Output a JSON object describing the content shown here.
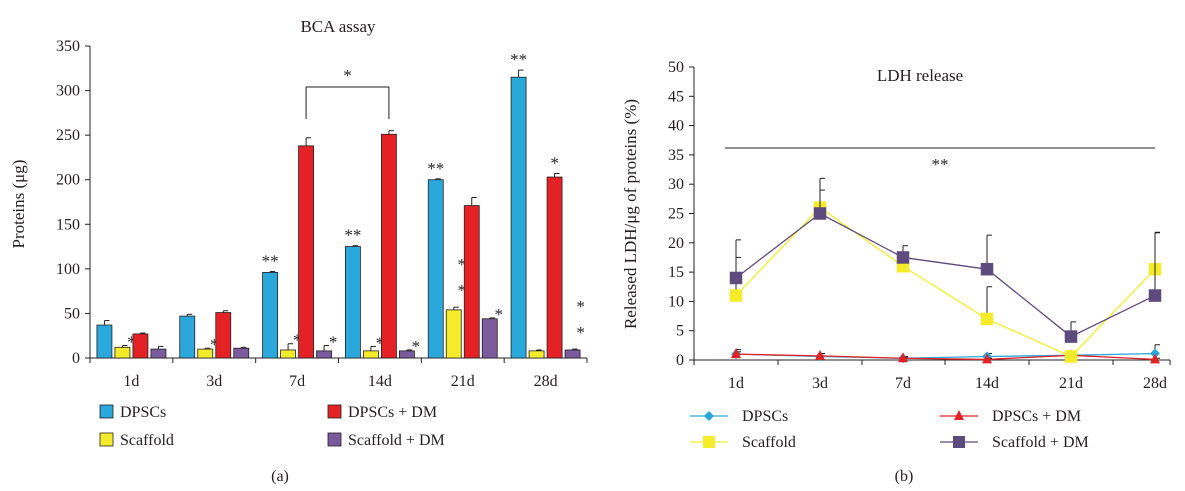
{
  "panel_a": {
    "label": "(a)",
    "legend": [
      {
        "name": "DPSCs",
        "color": "#2aa8dc"
      },
      {
        "name": "Scaffold",
        "color": "#f4ec2a"
      },
      {
        "name": "DPSCs + DM",
        "color": "#e42226"
      },
      {
        "name": "Scaffold + DM",
        "color": "#7b5b9e"
      }
    ],
    "bracket_label": "*"
  },
  "panel_b": {
    "label": "(b)",
    "legend": [
      {
        "name": "DPSCs",
        "color": "#2aa8dc",
        "marker": "diamond"
      },
      {
        "name": "Scaffold",
        "color": "#f4ec2a",
        "marker": "square"
      },
      {
        "name": "DPSCs + DM",
        "color": "#e42226",
        "marker": "triangle"
      },
      {
        "name": "Scaffold + DM",
        "color": "#5e4b7e",
        "marker": "square"
      }
    ],
    "line_label": "**"
  },
  "chart_data": [
    {
      "type": "bar",
      "title": "BCA assay",
      "ylabel": "Proteins (μg)",
      "xlabel": "",
      "ylim": [
        0,
        350
      ],
      "yticks": [
        "0",
        "50",
        "100",
        "150",
        "200",
        "250",
        "300",
        "350"
      ],
      "categories": [
        "1d",
        "3d",
        "7d",
        "14d",
        "21d",
        "28d"
      ],
      "series": [
        {
          "name": "DPSCs",
          "color": "#2aa8dc",
          "values": [
            37,
            47,
            96,
            125,
            200,
            315
          ],
          "errors": [
            5,
            2,
            1,
            1,
            1,
            8
          ],
          "sig": [
            "",
            "",
            "**",
            "**",
            "**",
            "**"
          ]
        },
        {
          "name": "Scaffold",
          "color": "#f4ec2a",
          "values": [
            12,
            10,
            9,
            8,
            54,
            8
          ],
          "errors": [
            2,
            1,
            7,
            5,
            3,
            1
          ],
          "sig": [
            "*",
            "*",
            "*",
            "*",
            "*\n*",
            ""
          ]
        },
        {
          "name": "DPSCs + DM",
          "color": "#e42226",
          "values": [
            27,
            51,
            238,
            251,
            171,
            203
          ],
          "errors": [
            1,
            2,
            9,
            4,
            9,
            4
          ],
          "sig": [
            "",
            "",
            "",
            "",
            "",
            "*"
          ]
        },
        {
          "name": "Scaffold + DM",
          "color": "#7b5b9e",
          "values": [
            10,
            11,
            8,
            8,
            44,
            9
          ],
          "errors": [
            3,
            1,
            6,
            1,
            1,
            1
          ],
          "sig": [
            "",
            "",
            "*",
            "*",
            "*",
            "*\n*"
          ]
        }
      ]
    },
    {
      "type": "line",
      "title": "LDH release",
      "ylabel": "Released LDH/μg of proteins (%)",
      "xlabel": "",
      "ylim": [
        0,
        50
      ],
      "yticks": [
        "0",
        "5",
        "10",
        "15",
        "20",
        "25",
        "30",
        "35",
        "40",
        "45",
        "50"
      ],
      "categories": [
        "1d",
        "3d",
        "7d",
        "14d",
        "21d",
        "28d"
      ],
      "series": [
        {
          "name": "DPSCs",
          "color": "#2aa8dc",
          "values": [
            1.0,
            0.6,
            0.3,
            0.6,
            0.8,
            1.1
          ],
          "errors": [
            0.8,
            0.5,
            0.3,
            0.5,
            0.5,
            1.5
          ]
        },
        {
          "name": "Scaffold",
          "color": "#f4ec2a",
          "values": [
            11.0,
            26.0,
            16.0,
            7.0,
            0.6,
            15.5
          ],
          "errors": [
            6.5,
            5.0,
            1.0,
            5.5,
            0.6,
            6.2
          ]
        },
        {
          "name": "DPSCs + DM",
          "color": "#e42226",
          "values": [
            1.0,
            0.7,
            0.3,
            0.1,
            0.8,
            0.1
          ],
          "errors": [
            0.4,
            0.4,
            0.2,
            0.2,
            0.3,
            0.2
          ]
        },
        {
          "name": "Scaffold + DM",
          "color": "#5e4b7e",
          "values": [
            14.0,
            25.0,
            17.5,
            15.5,
            4.0,
            11.0
          ],
          "errors": [
            6.5,
            4.0,
            2.0,
            5.8,
            2.5,
            10.8
          ]
        }
      ]
    }
  ]
}
